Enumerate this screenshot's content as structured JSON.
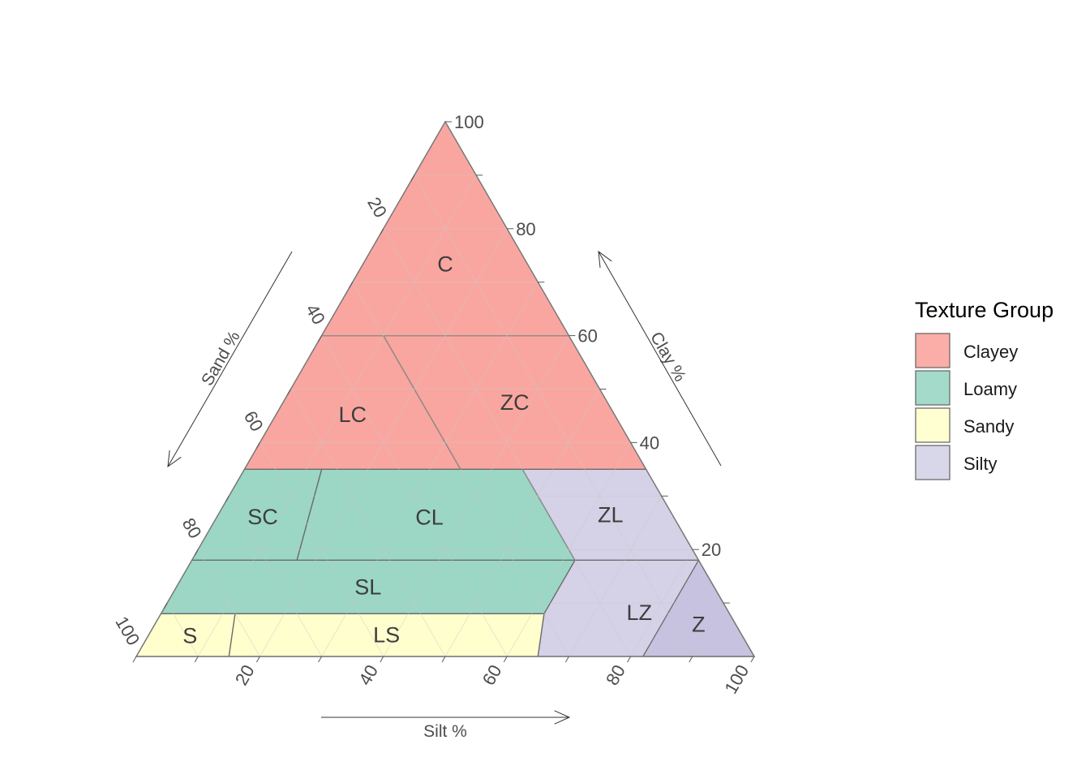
{
  "chart_data": {
    "type": "ternary",
    "axes": {
      "clay": {
        "label": "Clay %",
        "ticks": [
          20,
          40,
          60,
          80,
          100
        ],
        "range": [
          0,
          100
        ]
      },
      "sand": {
        "label": "Sand %",
        "ticks": [
          20,
          40,
          60,
          80,
          100
        ],
        "range": [
          0,
          100
        ]
      },
      "silt": {
        "label": "Silt %",
        "ticks": [
          20,
          40,
          60,
          80,
          100
        ],
        "range": [
          0,
          100
        ]
      }
    },
    "grid": true,
    "legend": {
      "title": "Texture Group",
      "position": "right",
      "entries": [
        {
          "name": "Clayey",
          "color": "#f8766d"
        },
        {
          "name": "Loamy",
          "color": "#66c2a5"
        },
        {
          "name": "Sandy",
          "color": "#ffffb3"
        },
        {
          "name": "Silty",
          "color": "#bebada"
        }
      ]
    },
    "regions": [
      {
        "label": "C",
        "group": "Clayey",
        "vertices": [
          [
            60,
            40,
            0
          ],
          [
            100,
            0,
            0
          ],
          [
            60,
            0,
            40
          ]
        ]
      },
      {
        "label": "LC",
        "group": "Clayey",
        "vertices": [
          [
            35,
            65,
            0
          ],
          [
            60,
            40,
            0
          ],
          [
            60,
            30,
            10
          ],
          [
            35,
            30,
            35
          ]
        ]
      },
      {
        "label": "ZC",
        "group": "Clayey",
        "vertices": [
          [
            35,
            30,
            35
          ],
          [
            60,
            30,
            10
          ],
          [
            60,
            0,
            40
          ],
          [
            35,
            0,
            65
          ]
        ]
      },
      {
        "label": "SC",
        "group": "Loamy",
        "vertices": [
          [
            18,
            82,
            0
          ],
          [
            35,
            65,
            0
          ],
          [
            35,
            52.5,
            12.5
          ],
          [
            18,
            65,
            17
          ]
        ]
      },
      {
        "label": "CL",
        "group": "Loamy",
        "vertices": [
          [
            18,
            65,
            17
          ],
          [
            35,
            52.5,
            12.5
          ],
          [
            35,
            20,
            45
          ],
          [
            18,
            20,
            62
          ]
        ]
      },
      {
        "label": "ZL",
        "group": "Silty",
        "vertices": [
          [
            18,
            20,
            62
          ],
          [
            35,
            20,
            45
          ],
          [
            35,
            0,
            65
          ],
          [
            18,
            0,
            82
          ]
        ]
      },
      {
        "label": "SL",
        "group": "Loamy",
        "vertices": [
          [
            8,
            92,
            0
          ],
          [
            18,
            82,
            0
          ],
          [
            18,
            20,
            62
          ],
          [
            8,
            30,
            62
          ]
        ]
      },
      {
        "label": "S",
        "group": "Sandy",
        "vertices": [
          [
            0,
            100,
            0
          ],
          [
            8,
            92,
            0
          ],
          [
            8,
            80,
            12
          ],
          [
            0,
            85,
            15
          ]
        ]
      },
      {
        "label": "LS",
        "group": "Sandy",
        "vertices": [
          [
            0,
            85,
            15
          ],
          [
            8,
            80,
            12
          ],
          [
            8,
            30,
            62
          ],
          [
            0,
            35,
            65
          ]
        ]
      },
      {
        "label": "LZ",
        "group": "Silty",
        "vertices": [
          [
            0,
            35,
            65
          ],
          [
            8,
            30,
            62
          ],
          [
            18,
            20,
            62
          ],
          [
            18,
            0,
            82
          ],
          [
            0,
            0,
            100
          ]
        ]
      },
      {
        "label": "Z",
        "group": "Silty",
        "vertices": [
          [
            0,
            18,
            82
          ],
          [
            18,
            0,
            82
          ],
          [
            0,
            0,
            100
          ]
        ]
      }
    ]
  }
}
